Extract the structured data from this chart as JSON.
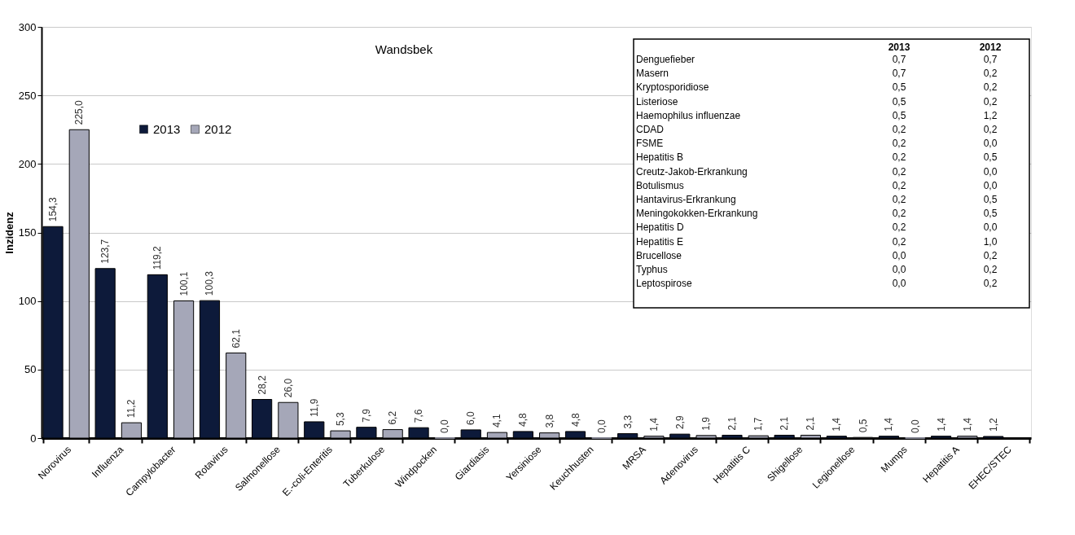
{
  "chart_data": [
    {
      "type": "bar",
      "title": "Wandsbek",
      "ylabel": "Inzidenz",
      "categories": [
        "Norovirus",
        "Influenza",
        "Campylobacter",
        "Rotavirus",
        "Salmonellose",
        "E.-coli-Enteritis",
        "Tuberkulose",
        "Windpocken",
        "Giardiasis",
        "Yersiniose",
        "Keuchhusten",
        "MRSA",
        "Adenovirus",
        "Hepatitis C",
        "Shigellose",
        "Legionellose",
        "Mumps",
        "Hepatitis A",
        "EHEC/STEC"
      ],
      "series": [
        {
          "name": "2013",
          "color": "#0d1a3a",
          "values": [
            154.3,
            123.7,
            119.2,
            100.3,
            28.2,
            11.9,
            7.9,
            7.6,
            6.0,
            4.8,
            4.8,
            3.3,
            2.9,
            2.1,
            2.1,
            1.4,
            1.4,
            1.4,
            1.2
          ],
          "value_labels": [
            "154,3",
            "123,7",
            "119,2",
            "100,3",
            "28,2",
            "11,9",
            "7,9",
            "7,6",
            "6,0",
            "4,8",
            "4,8",
            "3,3",
            "2,9",
            "2,1",
            "2,1",
            "1,4",
            "1,4",
            "1,4",
            "1,2"
          ]
        },
        {
          "name": "2012",
          "color": "#a5a7b8",
          "values": [
            225.0,
            11.2,
            100.1,
            62.1,
            26.0,
            5.3,
            6.2,
            0.0,
            4.1,
            3.8,
            0.0,
            1.4,
            1.9,
            1.7,
            2.1,
            0.5,
            0.0,
            1.4,
            null
          ],
          "value_labels": [
            "225,0",
            "11,2",
            "100,1",
            "62,1",
            "26,0",
            "5,3",
            "6,2",
            "0,0",
            "4,1",
            "3,8",
            "0,0",
            "1,4",
            "1,9",
            "1,7",
            "2,1",
            "0,5",
            "0,0",
            "1,4",
            null
          ]
        }
      ],
      "ylim": [
        0,
        300
      ],
      "yticks": [
        0,
        50,
        100,
        150,
        200,
        250,
        300
      ],
      "grid": "y",
      "legend": "top left"
    },
    {
      "type": "other",
      "categories": [
        "Denguefieber",
        "Masern",
        "Kryptosporidiose",
        "Listeriose",
        "Haemophilus influenzae",
        "CDAD",
        "FSME",
        "Hepatitis B",
        "Creutz-Jakob-Erkrankung",
        "Botulismus",
        "Hantavirus-Erkrankung",
        "Meningokokken-Erkrankung",
        "Hepatitis D",
        "Hepatitis E",
        "Brucellose",
        "Typhus",
        "Leptospirose"
      ],
      "series": [
        {
          "name": "2013",
          "values": [
            0.7,
            0.7,
            0.5,
            0.5,
            0.5,
            0.2,
            0.2,
            0.2,
            0.2,
            0.2,
            0.2,
            0.2,
            0.2,
            0.2,
            0.0,
            0.0,
            0.0
          ],
          "value_labels": [
            "0,7",
            "0,7",
            "0,5",
            "0,5",
            "0,5",
            "0,2",
            "0,2",
            "0,2",
            "0,2",
            "0,2",
            "0,2",
            "0,2",
            "0,2",
            "0,2",
            "0,0",
            "0,0",
            "0,0"
          ]
        },
        {
          "name": "2012",
          "values": [
            0.7,
            0.2,
            0.2,
            0.2,
            1.2,
            0.2,
            0.0,
            0.5,
            0.0,
            0.0,
            0.5,
            0.5,
            0.0,
            1.0,
            0.2,
            0.2,
            0.2
          ],
          "value_labels": [
            "0,7",
            "0,2",
            "0,2",
            "0,2",
            "1,2",
            "0,2",
            "0,0",
            "0,5",
            "0,0",
            "0,0",
            "0,5",
            "0,5",
            "0,0",
            "1,0",
            "0,2",
            "0,2",
            "0,2"
          ]
        }
      ]
    }
  ]
}
